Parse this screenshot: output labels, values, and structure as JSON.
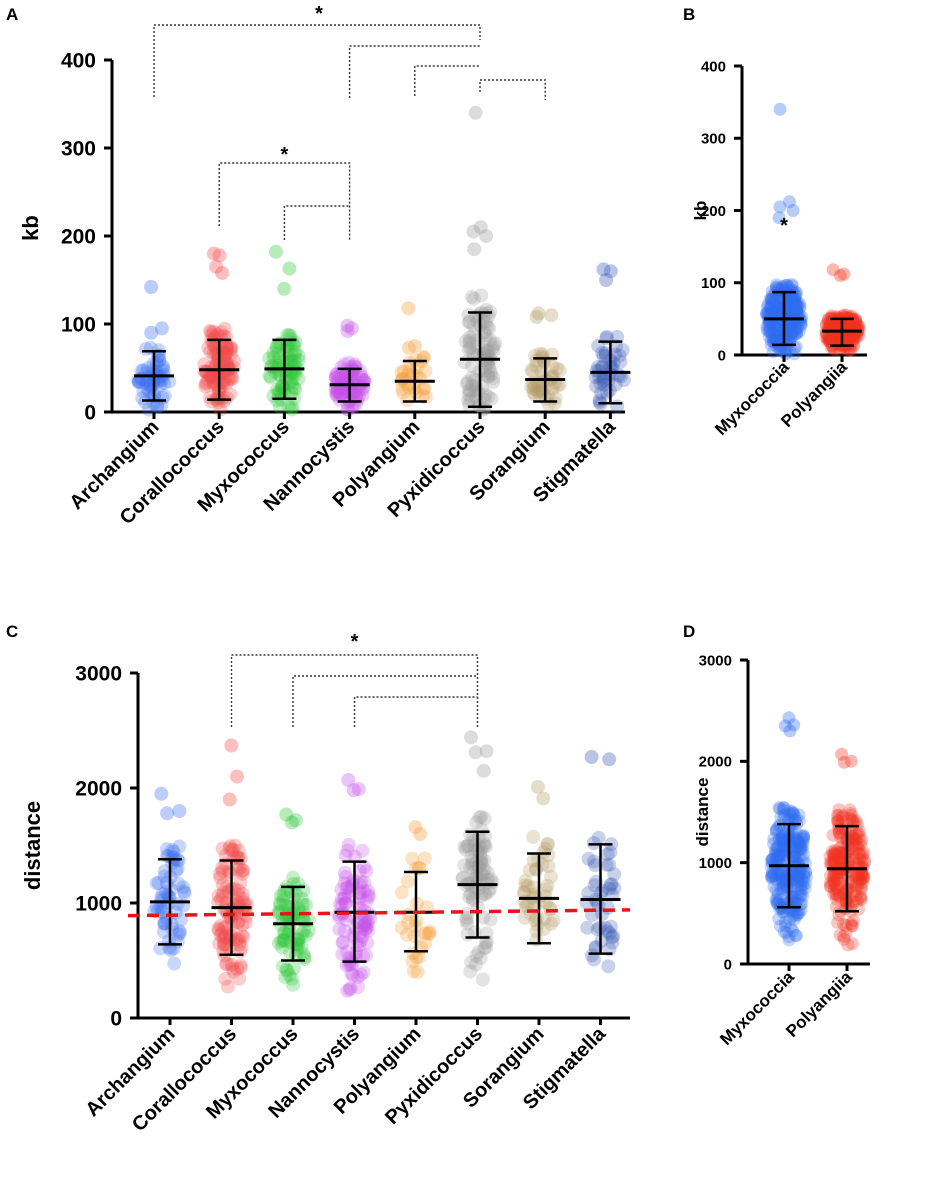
{
  "colors": {
    "Archangium": "#3d6ff0",
    "Corallococcus": "#f04a4a",
    "Myxococcus": "#2fc63a",
    "Nannocystis": "#c552e8",
    "Polyangium": "#f59a30",
    "Pyxidicoccus": "#9a9a9a",
    "Sorangium": "#b59a66",
    "Stigmatella": "#3a58b4",
    "Myxococcia": "#2f6cf2",
    "Polyangiia": "#f2341f",
    "reference_line": "#e8141c"
  },
  "chart_data": [
    {
      "panel": "A",
      "type": "scatter",
      "ylabel": "kb",
      "xlabel": "",
      "yticks": [
        "0",
        "100",
        "200",
        "300",
        "400"
      ],
      "ylim": [
        0,
        400
      ],
      "categories": [
        "Archangium",
        "Corallococcus",
        "Myxococcus",
        "Nannocystis",
        "Polyangium",
        "Pyxidicoccus",
        "Sorangium",
        "Stigmatella"
      ],
      "series": [
        {
          "name": "Archangium",
          "mean": 41,
          "sd_low": 13,
          "sd_high": 69,
          "min": 2,
          "max": 142,
          "n": 60,
          "outliers": [
            142,
            95,
            90
          ]
        },
        {
          "name": "Corallococcus",
          "mean": 48,
          "sd_low": 14,
          "sd_high": 82,
          "min": 1,
          "max": 180,
          "n": 110,
          "outliers": [
            180,
            178,
            165,
            158
          ]
        },
        {
          "name": "Myxococcus",
          "mean": 49,
          "sd_low": 15,
          "sd_high": 82,
          "min": 2,
          "max": 182,
          "n": 80,
          "outliers": [
            182,
            163,
            140
          ]
        },
        {
          "name": "Nannocystis",
          "mean": 31,
          "sd_low": 12,
          "sd_high": 49,
          "min": 2,
          "max": 98,
          "n": 95,
          "outliers": [
            98,
            95,
            92
          ]
        },
        {
          "name": "Polyangium",
          "mean": 35,
          "sd_low": 12,
          "sd_high": 58,
          "min": 3,
          "max": 118,
          "n": 28,
          "outliers": [
            118,
            75,
            73
          ]
        },
        {
          "name": "Pyxidicoccus",
          "mean": 60,
          "sd_low": 6,
          "sd_high": 113,
          "min": 2,
          "max": 340,
          "n": 90,
          "outliers": [
            340,
            210,
            205,
            200,
            185
          ]
        },
        {
          "name": "Sorangium",
          "mean": 37,
          "sd_low": 12,
          "sd_high": 61,
          "min": 3,
          "max": 112,
          "n": 45,
          "outliers": [
            112,
            110,
            108
          ]
        },
        {
          "name": "Stigmatella",
          "mean": 45,
          "sd_low": 10,
          "sd_high": 80,
          "min": 2,
          "max": 162,
          "n": 45,
          "outliers": [
            162,
            160,
            150
          ]
        }
      ],
      "annotations": [
        {
          "text": "*",
          "brackets": [
            [
              "Archangium",
              "Pyxidicoccus"
            ],
            [
              "Nannocystis",
              "Pyxidicoccus"
            ],
            [
              "Polyangium",
              "Pyxidicoccus"
            ],
            [
              "Pyxidicoccus",
              "Sorangium"
            ]
          ]
        },
        {
          "text": "*",
          "brackets": [
            [
              "Corallococcus",
              "Nannocystis"
            ],
            [
              "Myxococcus",
              "Nannocystis"
            ]
          ]
        }
      ]
    },
    {
      "panel": "B",
      "type": "scatter",
      "ylabel": "kb",
      "xlabel": "",
      "yticks": [
        "0",
        "100",
        "200",
        "300",
        "400"
      ],
      "ylim": [
        0,
        400
      ],
      "categories": [
        "Myxococcia",
        "Polyangiia"
      ],
      "series": [
        {
          "name": "Myxococcia",
          "mean": 50,
          "sd_low": 14,
          "sd_high": 87,
          "min": 1,
          "max": 340,
          "n": 260,
          "outliers": [
            340,
            212,
            205,
            200,
            190
          ]
        },
        {
          "name": "Polyangiia",
          "mean": 33,
          "sd_low": 13,
          "sd_high": 50,
          "min": 2,
          "max": 118,
          "n": 210,
          "outliers": [
            118,
            112,
            110
          ]
        }
      ],
      "annotations": [
        {
          "text": "*",
          "on": "Myxococcia"
        }
      ]
    },
    {
      "panel": "C",
      "type": "scatter",
      "ylabel": "distance",
      "xlabel": "",
      "yticks": [
        "0",
        "1000",
        "2000",
        "3000"
      ],
      "ylim": [
        0,
        3000
      ],
      "categories": [
        "Archangium",
        "Corallococcus",
        "Myxococcus",
        "Nannocystis",
        "Polyangium",
        "Pyxidicoccus",
        "Sorangium",
        "Stigmatella"
      ],
      "series": [
        {
          "name": "Archangium",
          "mean": 1010,
          "sd_low": 640,
          "sd_high": 1380,
          "min": 360,
          "max": 1950,
          "n": 60,
          "outliers": [
            1950,
            1800,
            1780
          ]
        },
        {
          "name": "Corallococcus",
          "mean": 960,
          "sd_low": 550,
          "sd_high": 1370,
          "min": 230,
          "max": 2370,
          "n": 110,
          "outliers": [
            2370,
            2100,
            1900
          ]
        },
        {
          "name": "Myxococcus",
          "mean": 820,
          "sd_low": 500,
          "sd_high": 1140,
          "min": 250,
          "max": 1770,
          "n": 80,
          "outliers": [
            1770,
            1720,
            1700
          ]
        },
        {
          "name": "Nannocystis",
          "mean": 920,
          "sd_low": 490,
          "sd_high": 1360,
          "min": 180,
          "max": 2070,
          "n": 95,
          "outliers": [
            2070,
            1990,
            1980
          ]
        },
        {
          "name": "Polyangium",
          "mean": 920,
          "sd_low": 580,
          "sd_high": 1270,
          "min": 330,
          "max": 1660,
          "n": 28,
          "outliers": [
            1660,
            1600
          ]
        },
        {
          "name": "Pyxidicoccus",
          "mean": 1160,
          "sd_low": 700,
          "sd_high": 1620,
          "min": 260,
          "max": 2440,
          "n": 90,
          "outliers": [
            2440,
            2320,
            2310,
            2150
          ]
        },
        {
          "name": "Sorangium",
          "mean": 1040,
          "sd_low": 650,
          "sd_high": 1430,
          "min": 370,
          "max": 2010,
          "n": 45,
          "outliers": [
            2010,
            1910
          ]
        },
        {
          "name": "Stigmatella",
          "mean": 1030,
          "sd_low": 560,
          "sd_high": 1510,
          "min": 340,
          "max": 2270,
          "n": 45,
          "outliers": [
            2270,
            2250
          ]
        }
      ],
      "reference_line": {
        "y_start": 890,
        "y_end": 940,
        "style": "dashed"
      },
      "annotations": [
        {
          "text": "*",
          "brackets": [
            [
              "Corallococcus",
              "Pyxidicoccus"
            ],
            [
              "Myxococcus",
              "Pyxidicoccus"
            ],
            [
              "Nannocystis",
              "Pyxidicoccus"
            ]
          ]
        }
      ]
    },
    {
      "panel": "D",
      "type": "scatter",
      "ylabel": "distance",
      "xlabel": "",
      "yticks": [
        "0",
        "1000",
        "2000",
        "3000"
      ],
      "ylim": [
        0,
        3000
      ],
      "categories": [
        "Myxococcia",
        "Polyangiia"
      ],
      "series": [
        {
          "name": "Myxococcia",
          "mean": 970,
          "sd_low": 560,
          "sd_high": 1380,
          "min": 230,
          "max": 2430,
          "n": 260,
          "outliers": [
            2430,
            2360,
            2350,
            2300
          ]
        },
        {
          "name": "Polyangiia",
          "mean": 940,
          "sd_low": 520,
          "sd_high": 1360,
          "min": 180,
          "max": 2070,
          "n": 210,
          "outliers": [
            2070,
            2000,
            1990
          ]
        }
      ],
      "annotations": []
    }
  ],
  "panels": [
    {
      "label": "A"
    },
    {
      "label": "B"
    },
    {
      "label": "C"
    },
    {
      "label": "D"
    }
  ]
}
